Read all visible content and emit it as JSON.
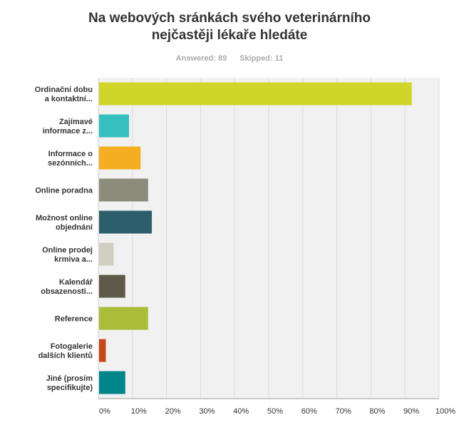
{
  "header": {
    "title_line1": "Na webových sránkách svého veterinárního",
    "title_line2": "nejčastěji lékaře hledáte",
    "answered_label": "Answered: 89",
    "skipped_label": "Skipped: 11"
  },
  "chart_data": {
    "type": "bar",
    "orientation": "horizontal",
    "categories": [
      [
        "Ordinační dobu",
        "a kontaktní..."
      ],
      [
        "Zajímavé",
        "informace z..."
      ],
      [
        "Informace o",
        "sezónních..."
      ],
      [
        "Online poradna"
      ],
      [
        "Možnost online",
        "objednání"
      ],
      [
        "Online prodej",
        "krmiva a..."
      ],
      [
        "Kalendář",
        "obsazenosti..."
      ],
      [
        "Reference"
      ],
      [
        "Fotogalerie",
        "dalších klientů"
      ],
      [
        "Jiné (prosím",
        "specifikujte)"
      ]
    ],
    "values": [
      92,
      9,
      12.4,
      14.6,
      15.7,
      4.5,
      7.9,
      14.6,
      2.2,
      7.9
    ],
    "colors": [
      "#cfd629",
      "#35bfbf",
      "#f5ae22",
      "#8b8c7b",
      "#2c5f6b",
      "#d1cfc1",
      "#5e5a4b",
      "#a9bd38",
      "#c5471c",
      "#00858a"
    ],
    "xlim": [
      0,
      100
    ],
    "xticks": [
      "0%",
      "10%",
      "20%",
      "30%",
      "40%",
      "50%",
      "60%",
      "70%",
      "80%",
      "90%",
      "100%"
    ],
    "grid": true,
    "plot_background": "#f1f1f1"
  }
}
